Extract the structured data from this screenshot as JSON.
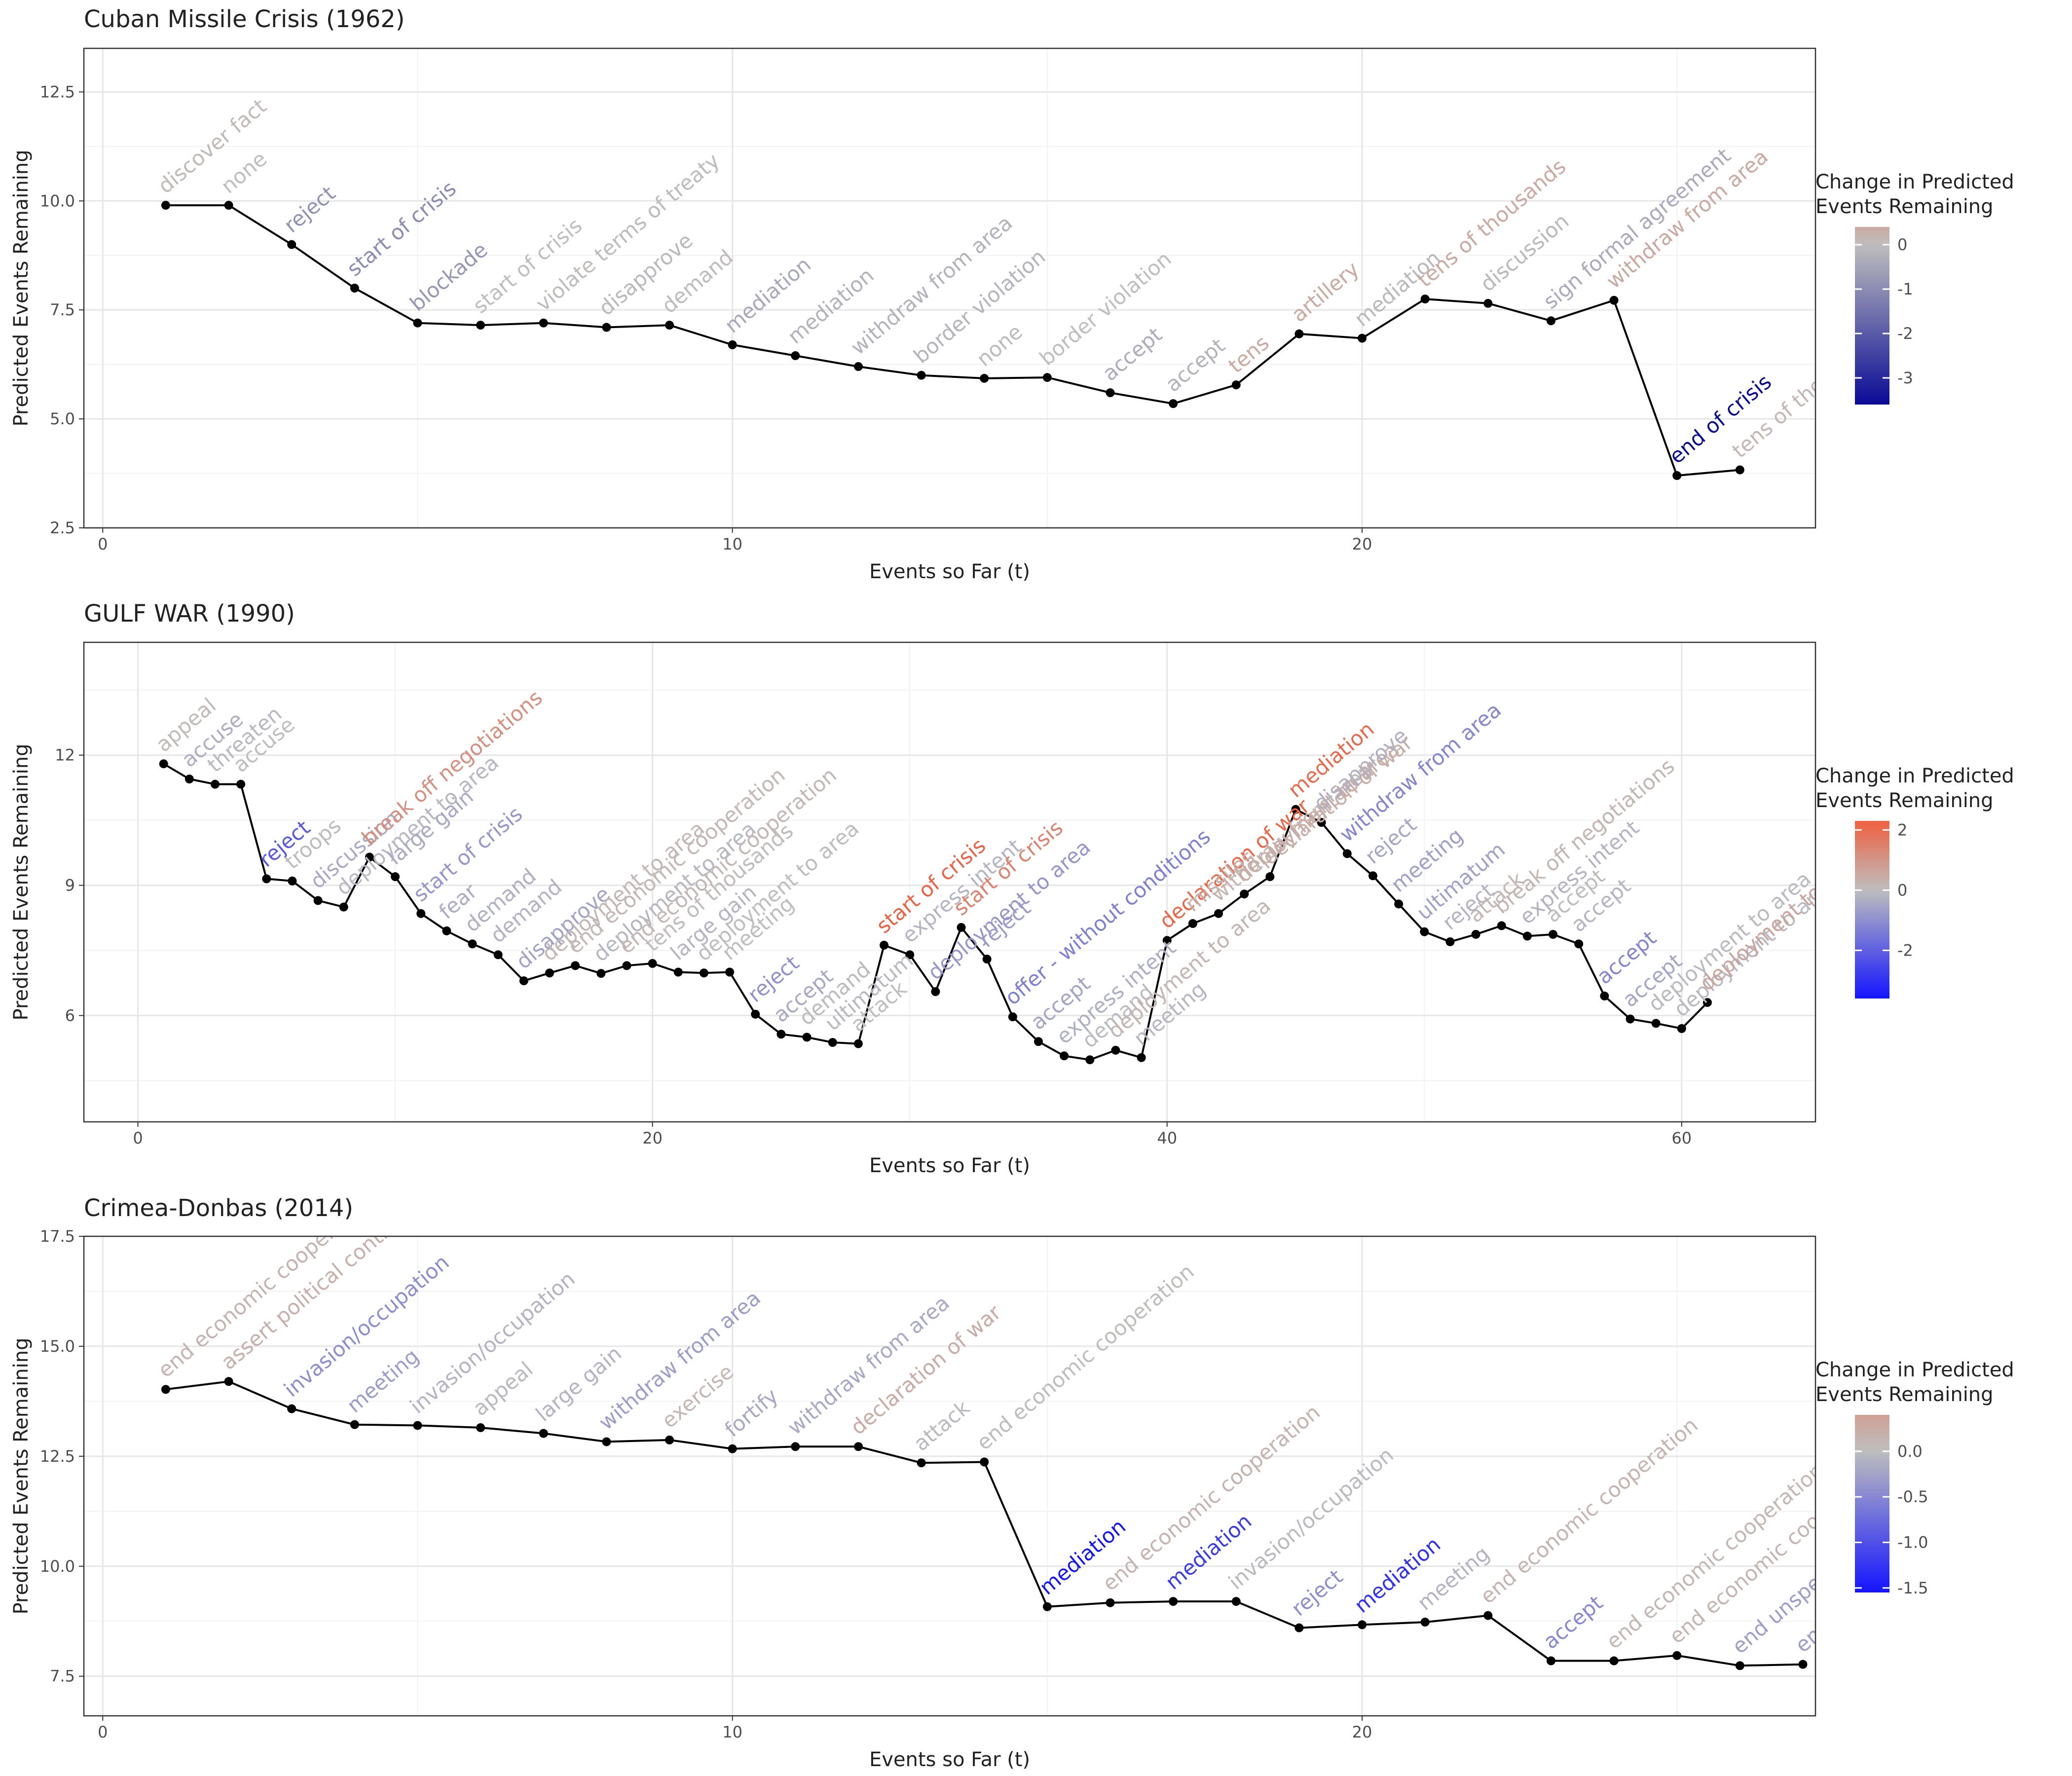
{
  "figure": {
    "legend_title_line1": "Change in Predicted",
    "legend_title_line2": "Events Remaining"
  },
  "chart_data": [
    {
      "type": "line",
      "title": "Cuban Missile Crisis (1962)",
      "xlabel": "Events so Far (t)",
      "ylabel": "Predicted Events Remaining",
      "xlim": [
        -0.3,
        27.2
      ],
      "ylim": [
        2.5,
        13.5
      ],
      "xticks": [
        0,
        10,
        20
      ],
      "yticks": [
        2.5,
        5.0,
        7.5,
        10.0,
        12.5
      ],
      "ytick_decimals": 1,
      "grid": true,
      "legend_position": "right",
      "colorbar": {
        "min": -3.6,
        "max": 0.4,
        "ticks": [
          0,
          -1,
          -2,
          -3
        ],
        "low_color": "#0a0a96",
        "mid_color": "#bebebe",
        "high_color": "#c9a9a0"
      },
      "x": [
        1,
        2,
        3,
        4,
        5,
        6,
        7,
        8,
        9,
        10,
        11,
        12,
        13,
        14,
        15,
        16,
        17,
        18,
        19,
        20,
        21,
        22,
        23,
        24,
        25,
        26
      ],
      "y": [
        9.9,
        9.9,
        9.0,
        8.0,
        7.2,
        7.15,
        7.2,
        7.1,
        7.15,
        6.7,
        6.45,
        6.2,
        6.0,
        5.93,
        5.95,
        5.6,
        5.35,
        5.78,
        6.95,
        6.85,
        7.75,
        7.65,
        7.25,
        7.72,
        3.7,
        3.83
      ],
      "labels": [
        "discover fact",
        "none",
        "reject",
        "start of crisis",
        "blockade",
        "start of crisis",
        "violate terms of treaty",
        "disapprove",
        "demand",
        "mediation",
        "mediation",
        "withdraw from area",
        "border violation",
        "none",
        "border violation",
        "accept",
        "accept",
        "tens",
        "artillery",
        "mediation",
        "tens of thousands",
        "discussion",
        "sign formal agreement",
        "withdraw from area",
        "end of crisis",
        "tens of thousands"
      ],
      "changes": [
        0.1,
        0.0,
        -0.9,
        -1.0,
        -0.8,
        0.0,
        0.05,
        -0.1,
        0.05,
        -0.45,
        -0.25,
        -0.25,
        -0.2,
        -0.07,
        0.02,
        -0.35,
        -0.25,
        0.43,
        1.17,
        -0.1,
        0.9,
        -0.1,
        -0.4,
        0.47,
        -4.02,
        0.13
      ]
    },
    {
      "type": "line",
      "title": "GULF WAR (1990)",
      "xlabel": "Events so Far (t)",
      "ylabel": "Predicted Events Remaining",
      "xlim": [
        -2.1,
        65.2
      ],
      "ylim": [
        3.55,
        14.6
      ],
      "xticks": [
        0,
        20,
        40,
        60
      ],
      "yticks": [
        6,
        9,
        12
      ],
      "ytick_decimals": 0,
      "grid": true,
      "legend_position": "right",
      "colorbar": {
        "min": -3.6,
        "max": 2.3,
        "ticks": [
          2,
          0,
          -2
        ],
        "low_color": "#1414ff",
        "mid_color": "#bebebe",
        "high_color": "#f06040"
      },
      "x": [
        1,
        2,
        3,
        4,
        5,
        6,
        7,
        8,
        9,
        10,
        11,
        12,
        13,
        14,
        15,
        16,
        17,
        18,
        19,
        20,
        21,
        22,
        23,
        24,
        25,
        26,
        27,
        28,
        29,
        30,
        31,
        32,
        33,
        34,
        35,
        36,
        37,
        38,
        39,
        40,
        41,
        42,
        43,
        44,
        45,
        46,
        47,
        48,
        49,
        50,
        51,
        52,
        53,
        54,
        55,
        56,
        57,
        58,
        59,
        60,
        61
      ],
      "y": [
        11.8,
        11.45,
        11.33,
        11.33,
        9.15,
        9.1,
        8.65,
        8.5,
        9.65,
        9.2,
        8.35,
        7.95,
        7.65,
        7.4,
        6.8,
        6.98,
        7.15,
        6.97,
        7.15,
        7.2,
        7.0,
        6.98,
        7.0,
        6.03,
        5.57,
        5.5,
        5.38,
        5.35,
        7.62,
        7.4,
        6.55,
        8.03,
        7.3,
        5.97,
        5.4,
        5.07,
        4.98,
        5.2,
        5.03,
        7.73,
        8.12,
        8.35,
        8.8,
        9.2,
        10.75,
        10.45,
        9.73,
        9.22,
        8.57,
        7.93,
        7.7,
        7.87,
        8.07,
        7.83,
        7.87,
        7.65,
        6.45,
        5.92,
        5.82,
        5.7,
        6.3
      ],
      "labels": [
        "appeal",
        "accuse",
        "threaten",
        "accuse",
        "reject",
        "troops",
        "discussion",
        "deployment to area",
        "break off negotiations",
        "large gain",
        "start of crisis",
        "fear",
        "demand",
        "demand",
        "disapprove",
        "deployment to area",
        "end economic cooperation",
        "deployment to area",
        "end economic cooperation",
        "tens of thousands",
        "large gain",
        "deployment to area",
        "meeting",
        "reject",
        "accept",
        "demand",
        "ultimatum",
        "attack",
        "start of crisis",
        "express intent",
        "deployment to area",
        "start of crisis",
        "reject",
        "offer - without conditions",
        "accept",
        "express intent",
        "demand",
        "deployment to area",
        "meeting",
        "declaration of war",
        "missiles",
        "withdraw from area",
        "deployment to area",
        "declaration of war",
        "mediation",
        "disapprove",
        "withdraw from area",
        "reject",
        "meeting",
        "ultimatum",
        "reject",
        "attack",
        "break off negotiations",
        "express intent",
        "accept",
        "accept",
        "accept",
        "accept",
        "deployment to area",
        "deployment to area",
        "deployment to area"
      ],
      "changes": [
        0.1,
        -0.35,
        -0.12,
        0.0,
        -2.18,
        -0.05,
        -0.45,
        -0.15,
        1.15,
        -0.45,
        -0.85,
        -0.4,
        -0.3,
        -0.25,
        -0.6,
        0.18,
        0.17,
        -0.18,
        0.18,
        0.05,
        -0.2,
        -0.02,
        0.02,
        -0.97,
        -0.46,
        -0.07,
        -0.12,
        -0.03,
        2.27,
        -0.22,
        -0.85,
        1.48,
        -0.73,
        -1.33,
        -0.57,
        -0.33,
        -0.09,
        0.22,
        -0.17,
        2.2,
        0.39,
        0.23,
        0.45,
        0.4,
        2.1,
        -0.3,
        -1.2,
        -0.51,
        -0.65,
        -0.64,
        -0.23,
        0.17,
        0.2,
        -0.24,
        0.04,
        -0.22,
        -1.2,
        -0.53,
        -0.1,
        -0.12,
        0.6
      ]
    },
    {
      "type": "line",
      "title": "Crimea-Donbas (2014)",
      "xlabel": "Events so Far (t)",
      "ylabel": "Predicted Events Remaining",
      "xlim": [
        -0.3,
        27.2
      ],
      "ylim": [
        6.6,
        17.5
      ],
      "xticks": [
        0,
        10,
        20
      ],
      "yticks": [
        7.5,
        10.0,
        12.5,
        15.0,
        17.5
      ],
      "ytick_decimals": 1,
      "grid": true,
      "legend_position": "right",
      "colorbar": {
        "min": -1.55,
        "max": 0.4,
        "ticks": [
          0.0,
          -0.5,
          -1.0,
          -1.5
        ],
        "low_color": "#1414ff",
        "mid_color": "#bebebe",
        "high_color": "#d0a096"
      },
      "x": [
        1,
        2,
        3,
        4,
        5,
        6,
        7,
        8,
        9,
        10,
        11,
        12,
        13,
        14,
        15,
        16,
        17,
        18,
        19,
        20,
        21,
        22,
        23,
        24,
        25,
        26,
        27
      ],
      "y": [
        14.02,
        14.2,
        13.58,
        13.22,
        13.2,
        13.15,
        13.02,
        12.83,
        12.87,
        12.67,
        12.72,
        12.72,
        12.35,
        12.37,
        9.08,
        9.17,
        9.2,
        9.2,
        8.6,
        8.67,
        8.73,
        8.88,
        7.85,
        7.85,
        7.97,
        7.74,
        7.77
      ],
      "labels": [
        "end economic cooperation",
        "assert political control",
        "invasion/occupation",
        "meeting",
        "invasion/occupation",
        "appeal",
        "large gain",
        "withdraw from area",
        "exercise",
        "fortify",
        "withdraw from area",
        "declaration of war",
        "attack",
        "end economic cooperation",
        "mediation",
        "end economic cooperation",
        "mediation",
        "invasion/occupation",
        "reject",
        "mediation",
        "meeting",
        "end economic cooperation",
        "accept",
        "end economic cooperation",
        "end economic cooperation",
        "end unspecified cooperation",
        "end unspecified cooperation"
      ],
      "changes": [
        0.15,
        0.2,
        -0.45,
        -0.3,
        -0.1,
        -0.05,
        -0.1,
        -0.3,
        0.1,
        -0.2,
        -0.2,
        0.25,
        -0.05,
        0.02,
        -1.55,
        0.15,
        -1.2,
        -0.05,
        -0.45,
        -1.3,
        -0.1,
        0.15,
        -0.5,
        0.1,
        0.12,
        -0.3,
        -0.3
      ]
    }
  ]
}
